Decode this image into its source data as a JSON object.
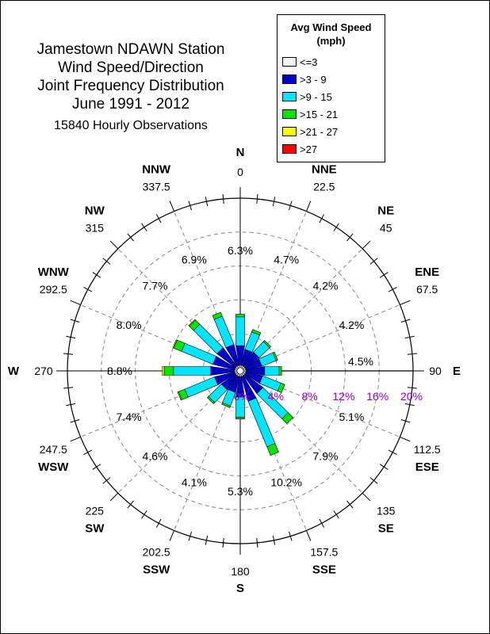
{
  "title": {
    "line1": "Jamestown NDAWN Station",
    "line2": "Wind Speed/Direction",
    "line3": "Joint Frequency Distribution",
    "line4": "June 1991 - 2012",
    "line5": "15840 Hourly Observations"
  },
  "legend": {
    "title1": "Avg Wind Speed",
    "title2": "(mph)",
    "items": [
      {
        "label": "<=3",
        "color": "#f2f2f2"
      },
      {
        "label": ">3 - 9",
        "color": "#0000cc"
      },
      {
        "label": ">9 - 15",
        "color": "#00e5ff"
      },
      {
        "label": ">15 - 21",
        "color": "#00e600"
      },
      {
        "label": ">21 - 27",
        "color": "#ffff00"
      },
      {
        "label": ">27",
        "color": "#ff0000"
      }
    ]
  },
  "chart_data": {
    "type": "wind-rose",
    "radial_axis": {
      "ticks": [
        "0%",
        "4%",
        "8%",
        "12%",
        "16%",
        "20%"
      ],
      "max": 20,
      "tick_color": "#9900cc"
    },
    "directions": [
      {
        "compass": "N",
        "degrees": "0",
        "total": "6.3%",
        "parts": [
          0.3,
          2.3,
          3.4,
          0.3,
          0.0,
          0.0
        ]
      },
      {
        "compass": "NNE",
        "degrees": "22.5",
        "total": "4.7%",
        "parts": [
          0.3,
          1.9,
          2.2,
          0.3,
          0.0,
          0.0
        ]
      },
      {
        "compass": "NE",
        "degrees": "45",
        "total": "4.2%",
        "parts": [
          0.3,
          2.0,
          1.7,
          0.2,
          0.0,
          0.0
        ]
      },
      {
        "compass": "ENE",
        "degrees": "67.5",
        "total": "4.2%",
        "parts": [
          0.3,
          1.9,
          1.8,
          0.2,
          0.0,
          0.0
        ]
      },
      {
        "compass": "E",
        "degrees": "90",
        "total": "4.5%",
        "parts": [
          0.3,
          2.2,
          1.7,
          0.3,
          0.0,
          0.0
        ]
      },
      {
        "compass": "ESE",
        "degrees": "112.5",
        "total": "5.1%",
        "parts": [
          0.3,
          2.0,
          2.3,
          0.5,
          0.0,
          0.0
        ]
      },
      {
        "compass": "SE",
        "degrees": "135",
        "total": "7.9%",
        "parts": [
          0.3,
          2.6,
          4.2,
          0.8,
          0.0,
          0.0
        ]
      },
      {
        "compass": "SSE",
        "degrees": "157.5",
        "total": "10.2%",
        "parts": [
          0.3,
          3.0,
          5.8,
          1.1,
          0.0,
          0.0
        ]
      },
      {
        "compass": "S",
        "degrees": "180",
        "total": "5.3%",
        "parts": [
          0.3,
          2.4,
          2.4,
          0.2,
          0.0,
          0.0
        ]
      },
      {
        "compass": "SSW",
        "degrees": "202.5",
        "total": "4.1%",
        "parts": [
          0.3,
          1.9,
          1.7,
          0.2,
          0.0,
          0.0
        ]
      },
      {
        "compass": "SW",
        "degrees": "225",
        "total": "4.6%",
        "parts": [
          0.3,
          2.0,
          2.1,
          0.2,
          0.0,
          0.0
        ]
      },
      {
        "compass": "WSW",
        "degrees": "247.5",
        "total": "7.4%",
        "parts": [
          0.3,
          2.4,
          3.8,
          0.8,
          0.1,
          0.0
        ]
      },
      {
        "compass": "W",
        "degrees": "270",
        "total": "8.8%",
        "parts": [
          0.3,
          2.8,
          4.4,
          1.1,
          0.2,
          0.0
        ]
      },
      {
        "compass": "WNW",
        "degrees": "292.5",
        "total": "8.0%",
        "parts": [
          0.3,
          2.6,
          4.0,
          1.0,
          0.1,
          0.0
        ]
      },
      {
        "compass": "NW",
        "degrees": "315",
        "total": "7.7%",
        "parts": [
          0.3,
          2.7,
          3.9,
          0.7,
          0.1,
          0.0
        ]
      },
      {
        "compass": "NNW",
        "degrees": "337.5",
        "total": "6.9%",
        "parts": [
          0.3,
          2.5,
          3.6,
          0.5,
          0.0,
          0.0
        ]
      }
    ]
  }
}
